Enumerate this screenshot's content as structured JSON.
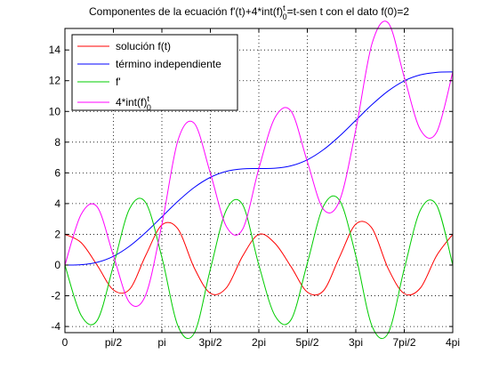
{
  "chart_data": {
    "type": "line",
    "title": "Componentes de la ecuación f'(t)+4*int(f)",
    "title_sup": "t",
    "title_sub": "0",
    "title_tail": "=t-sen t con el dato f(0)=2",
    "xlabel": "",
    "ylabel": "",
    "xlim": [
      0,
      12.566
    ],
    "ylim": [
      -4.4,
      15.4
    ],
    "grid": true,
    "legend_position": "top-left",
    "x_ticks": [
      {
        "value": 0,
        "label": "0"
      },
      {
        "value": 1.5708,
        "label": "pi/2"
      },
      {
        "value": 3.1416,
        "label": "pi"
      },
      {
        "value": 4.7124,
        "label": "3pi/2"
      },
      {
        "value": 6.2832,
        "label": "2pi"
      },
      {
        "value": 7.854,
        "label": "5pi/2"
      },
      {
        "value": 9.4248,
        "label": "3pi"
      },
      {
        "value": 10.9956,
        "label": "7pi/2"
      },
      {
        "value": 12.5664,
        "label": "4pi"
      }
    ],
    "y_ticks": [
      {
        "value": -4,
        "label": "-4"
      },
      {
        "value": -2,
        "label": "-2"
      },
      {
        "value": 0,
        "label": "0"
      },
      {
        "value": 2,
        "label": "2"
      },
      {
        "value": 4,
        "label": "4"
      },
      {
        "value": 6,
        "label": "6"
      },
      {
        "value": 8,
        "label": "8"
      },
      {
        "value": 10,
        "label": "10"
      },
      {
        "value": 12,
        "label": "12"
      },
      {
        "value": 14,
        "label": "14"
      }
    ],
    "x": [
      0,
      0.5236,
      1.0472,
      1.5708,
      2.0944,
      2.618,
      3.1416,
      3.6652,
      4.1888,
      4.7124,
      5.236,
      5.7596,
      6.2832,
      6.8068,
      7.3304,
      7.854,
      8.3776,
      8.9012,
      9.4248,
      9.9484,
      10.472,
      10.9956,
      11.5192,
      12.0428,
      12.5664
    ],
    "series": [
      {
        "name": "solución f(t)",
        "color": "#ff0000",
        "values": [
          2.0,
          1.46,
          -0.02,
          -1.62,
          -1.58,
          0.63,
          2.61,
          2.34,
          -0.18,
          -1.84,
          -1.47,
          0.59,
          2.0,
          1.41,
          -0.12,
          -1.76,
          -1.67,
          0.54,
          2.66,
          2.4,
          -0.22,
          -1.86,
          -1.49,
          0.61,
          2.0
        ]
      },
      {
        "name": "término independiente",
        "color": "#0000ff",
        "values": [
          0.0,
          0.02,
          0.18,
          0.57,
          1.23,
          2.12,
          3.14,
          4.16,
          5.05,
          5.71,
          6.1,
          6.26,
          6.28,
          6.3,
          6.46,
          6.85,
          7.51,
          8.4,
          9.42,
          10.44,
          11.33,
          11.99,
          12.38,
          12.54,
          12.57
        ]
      },
      {
        "name": "f'",
        "color": "#00cc00",
        "values": [
          0.0,
          -3.27,
          -3.6,
          -0.04,
          3.67,
          4.06,
          0.5,
          -3.98,
          -4.44,
          -0.27,
          3.61,
          3.92,
          0.0,
          -3.3,
          -3.55,
          0.12,
          3.84,
          4.2,
          0.61,
          -3.96,
          -4.44,
          -0.24,
          3.58,
          3.9,
          0.0
        ]
      },
      {
        "name": "4*int(f)",
        "name_sup": "t",
        "name_sub": "0",
        "color": "#ff00ff",
        "values": [
          0.0,
          3.29,
          3.78,
          0.61,
          -2.44,
          -1.94,
          2.64,
          8.14,
          9.23,
          5.98,
          2.49,
          2.34,
          6.28,
          9.6,
          10.01,
          6.73,
          3.62,
          4.2,
          8.81,
          14.4,
          15.77,
          12.23,
          8.8,
          8.64,
          12.57
        ]
      }
    ]
  }
}
